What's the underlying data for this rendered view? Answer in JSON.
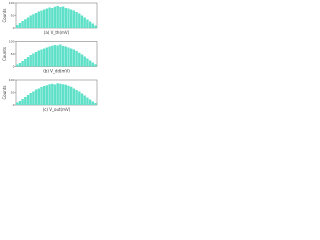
{
  "chart_data": [
    {
      "type": "histogram",
      "ylabel": "Counts",
      "xlabel": "(a) V_th(mV)",
      "color": "#5fe0c8",
      "bins": [
        0,
        1,
        2,
        3,
        4,
        5,
        6,
        7,
        8,
        9,
        10,
        11,
        12,
        13,
        14,
        15,
        16,
        17,
        18,
        19,
        20,
        21,
        22,
        23,
        24,
        25,
        26,
        27,
        28,
        29,
        30
      ],
      "counts": [
        12,
        20,
        28,
        35,
        42,
        50,
        55,
        60,
        66,
        70,
        74,
        78,
        82,
        80,
        85,
        88,
        84,
        86,
        80,
        78,
        74,
        70,
        64,
        58,
        50,
        42,
        34,
        26,
        18,
        10
      ],
      "xlim": [
        0,
        30
      ],
      "ylim": [
        0,
        100
      ],
      "yticks": [
        0,
        50,
        100
      ]
    },
    {
      "type": "histogram",
      "ylabel": "Counts",
      "xlabel": "(b) V_dd(mV)",
      "color": "#5fe0c8",
      "bins": [
        0,
        1,
        2,
        3,
        4,
        5,
        6,
        7,
        8,
        9,
        10,
        11,
        12,
        13,
        14,
        15,
        16,
        17,
        18,
        19,
        20,
        21,
        22,
        23,
        24,
        25,
        26,
        27,
        28,
        29,
        30
      ],
      "counts": [
        8,
        14,
        22,
        30,
        38,
        46,
        52,
        58,
        64,
        68,
        72,
        76,
        80,
        83,
        86,
        84,
        88,
        82,
        80,
        76,
        72,
        68,
        62,
        55,
        48,
        40,
        32,
        24,
        16,
        9
      ],
      "xlim": [
        0,
        30
      ],
      "ylim": [
        0,
        100
      ],
      "yticks": [
        0,
        50,
        100
      ]
    },
    {
      "type": "histogram",
      "ylabel": "Counts",
      "xlabel": "(c) V_out(mV)",
      "color": "#5fe0c8",
      "bins": [
        0,
        1,
        2,
        3,
        4,
        5,
        6,
        7,
        8,
        9,
        10,
        11,
        12,
        13,
        14,
        15,
        16,
        17,
        18,
        19,
        20,
        21,
        22,
        23,
        24,
        25,
        26,
        27,
        28,
        29,
        30
      ],
      "counts": [
        10,
        16,
        24,
        32,
        40,
        48,
        54,
        62,
        66,
        72,
        76,
        79,
        83,
        85,
        82,
        87,
        85,
        83,
        81,
        77,
        73,
        66,
        60,
        54,
        46,
        38,
        30,
        22,
        14,
        8
      ],
      "xlim": [
        0,
        30
      ],
      "ylim": [
        0,
        100
      ],
      "yticks": [
        0,
        50,
        100
      ]
    }
  ]
}
